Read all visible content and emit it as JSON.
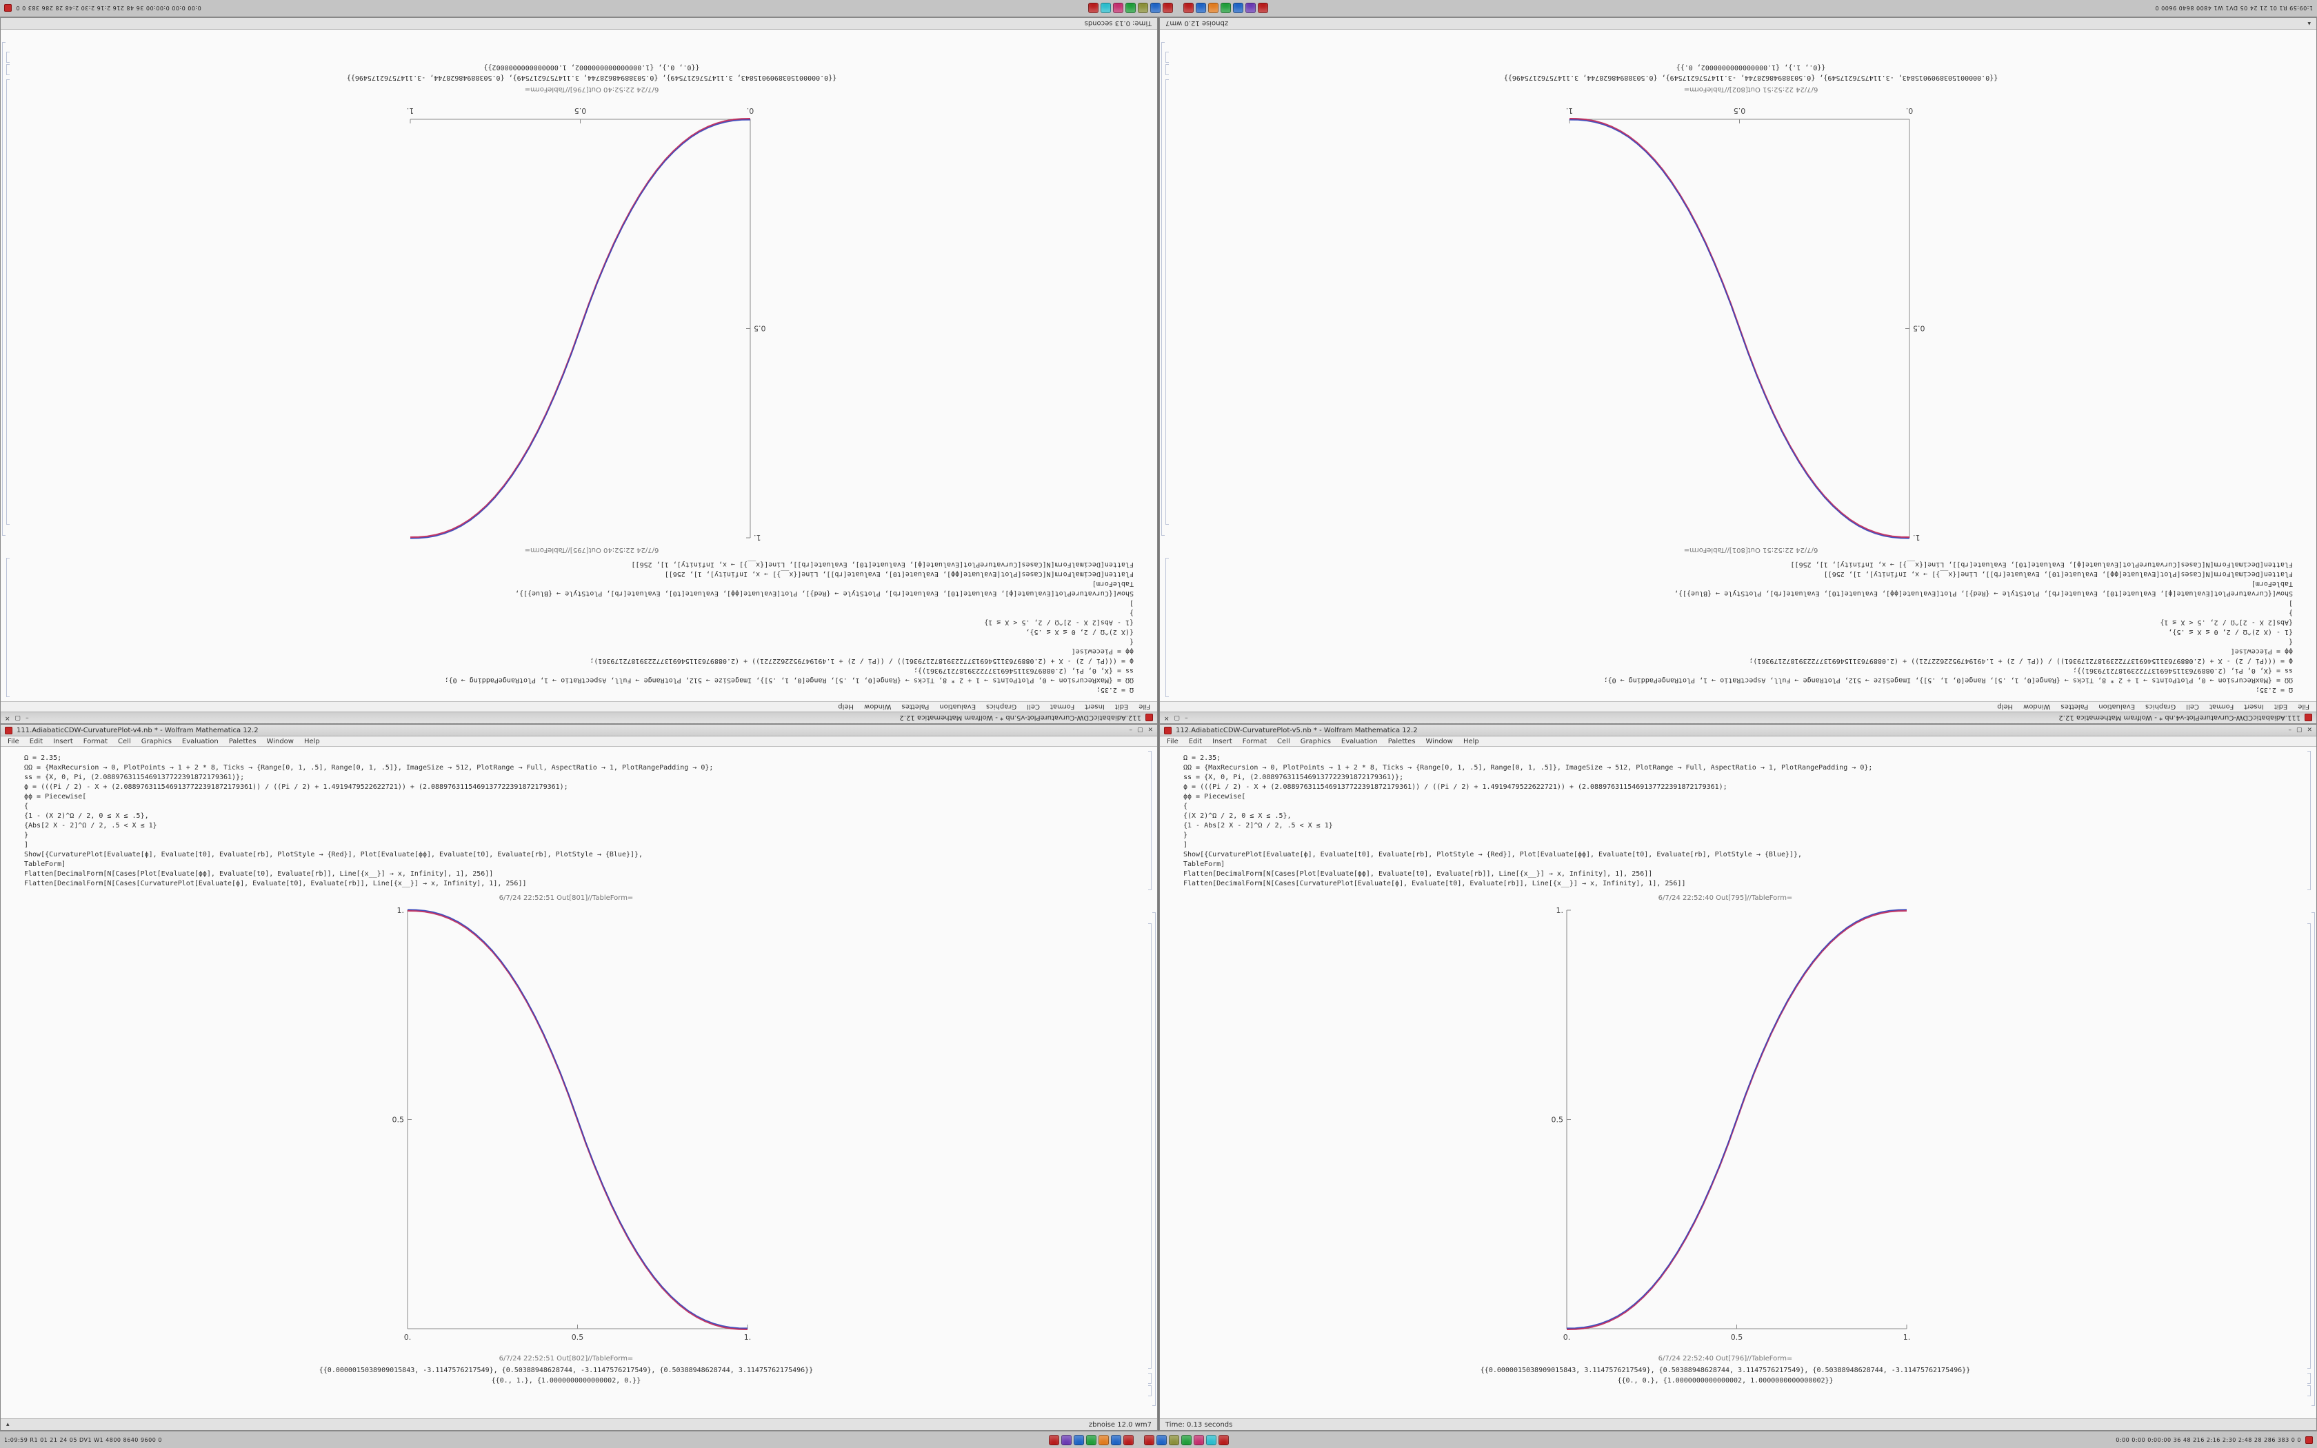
{
  "desktop": {
    "taskbar": {
      "left_text": "1:09:59  R1 01 21 24 05  DV1 W1  4800 8640 9600 0",
      "right_text": "0:00 0:00 0:00:00  36 48 216  2:16 2:30 2:48  28 286 383 0 0",
      "group1": [
        "#b71c1c",
        "#6a3ab2",
        "#1e63c4",
        "#1f9d3a",
        "#e07b1f",
        "#1e63c4",
        "#b71c1c"
      ],
      "group2": [
        "#b71c1c",
        "#1e63c4",
        "#8a8f3a",
        "#1f9d3a",
        "#c22f6e",
        "#2bbccc",
        "#b71c1c"
      ]
    }
  },
  "menu": [
    "File",
    "Edit",
    "Insert",
    "Format",
    "Cell",
    "Graphics",
    "Evaluation",
    "Palettes",
    "Window",
    "Help"
  ],
  "window_buttons": {
    "minimize": "–",
    "maximize": "▢",
    "close": "✕"
  },
  "notebooks": {
    "A": {
      "title": "112.AdiabaticCDW-CurvaturePlot-v5.nb * - Wolfram Mathematica 12.2",
      "status_left": "Time: 0.13 seconds",
      "status_right": "",
      "code": [
        "Ω = 2.35;",
        "ΩΩ = {MaxRecursion → 0, PlotPoints → 1 + 2 * 8, Ticks → {Range[0, 1, .5], Range[0, 1, .5]}, ImageSize → 512, PlotRange → Full, AspectRatio → 1, PlotRangePadding → 0};",
        "ss = {X, 0, Pi, (2.0889763115469137722391872179361)};",
        "ϕ = (((Pi / 2) - X + (2.0889763115469137722391872179361)) / ((Pi / 2) + 1.4919479522622721)) + (2.0889763115469137722391872179361);",
        "ϕϕ = Piecewise[",
        "    {",
        "      {(X 2)^Ω / 2, 0 ≤ X ≤ .5},",
        "      {1 - Abs[2 X - 2]^Ω / 2, .5 < X ≤ 1}",
        "    }",
        "  ]",
        "Show[{CurvaturePlot[Evaluate[ϕ], Evaluate[t0], Evaluate[rb], PlotStyle → {Red}], Plot[Evaluate[ϕϕ], Evaluate[t0], Evaluate[rb], PlotStyle → {Blue}]},",
        "  TableForm]",
        "Flatten[DecimalForm[N[Cases[Plot[Evaluate[ϕϕ], Evaluate[t0], Evaluate[rb]], Line[{x__}] → x, Infinity], 1], 256]]",
        "Flatten[DecimalForm[N[Cases[CurvaturePlot[Evaluate[ϕ], Evaluate[t0], Evaluate[rb]], Line[{x__}] → x, Infinity], 1], 256]]"
      ],
      "caption1": "6/7/24 22:52:40 Out[795]//TableForm=",
      "caption2": "6/7/24 22:52:40 Out[796]//TableForm=",
      "outputs": [
        "{{0.0000015038909015843, 3.1147576217549}, {0.50388948628744, 3.1147576217549}, {0.50388948628744, -3.11475762175496}}",
        "{{0., 0.}, {1.0000000000000002, 1.0000000000000002}}"
      ]
    },
    "B": {
      "title": "111.AdiabaticCDW-CurvaturePlot-v4.nb * - Wolfram Mathematica 12.2",
      "status_left": "",
      "status_right": "zbnoise 12.0 wm7",
      "code": [
        "Ω = 2.35;",
        "ΩΩ = {MaxRecursion → 0, PlotPoints → 1 + 2 * 8, Ticks → {Range[0, 1, .5], Range[0, 1, .5]}, ImageSize → 512, PlotRange → Full, AspectRatio → 1, PlotRangePadding → 0};",
        "ss = {X, 0, Pi, (2.0889763115469137722391872179361)};",
        "ϕ = (((Pi / 2) - X + (2.0889763115469137722391872179361)) / ((Pi / 2) + 1.4919479522622721)) + (2.0889763115469137722391872179361);",
        "ϕϕ = Piecewise[",
        "    {",
        "      {1 - (X 2)^Ω / 2, 0 ≤ X ≤ .5},",
        "      {Abs[2 X - 2]^Ω / 2, .5 < X ≤ 1}",
        "    }",
        "  ]",
        "Show[{CurvaturePlot[Evaluate[ϕ], Evaluate[t0], Evaluate[rb], PlotStyle → {Red}], Plot[Evaluate[ϕϕ], Evaluate[t0], Evaluate[rb], PlotStyle → {Blue}]},",
        "  TableForm]",
        "Flatten[DecimalForm[N[Cases[Plot[Evaluate[ϕϕ], Evaluate[t0], Evaluate[rb]], Line[{x__}] → x, Infinity], 1], 256]]",
        "Flatten[DecimalForm[N[Cases[CurvaturePlot[Evaluate[ϕ], Evaluate[t0], Evaluate[rb]], Line[{x__}] → x, Infinity], 1], 256]]"
      ],
      "caption1": "6/7/24 22:52:51 Out[801]//TableForm=",
      "caption2": "6/7/24 22:52:51 Out[802]//TableForm=",
      "outputs": [
        "{{0.0000015038909015843, -3.1147576217549}, {0.50388948628744, -3.1147576217549}, {0.50388948628744, 3.11475762175496}}",
        "{{0., 1.}, {1.0000000000000002, 0.}}"
      ]
    }
  },
  "chart_data": [
    {
      "type": "line",
      "title": "",
      "xlabel": "",
      "ylabel": "",
      "xlim": [
        0,
        1
      ],
      "ylim": [
        0,
        1
      ],
      "grid": false,
      "legend": "none",
      "x_ticks": [
        0,
        0.5,
        1
      ],
      "x_tick_labels": [
        "0.",
        "0.5",
        "1."
      ],
      "y_ticks": [
        0.5,
        1
      ],
      "y_tick_labels": [
        "0.5",
        "1."
      ],
      "x_step": 0.025,
      "series": [
        {
          "name": "CurvaturePlot (Red)",
          "color": "#bb2255"
        },
        {
          "name": "Plot (Blue)",
          "color": "#3344bb"
        }
      ],
      "values": [
        0,
        0.0004,
        0.0022,
        0.0058,
        0.0114,
        0.0192,
        0.0295,
        0.0424,
        0.0581,
        0.0766,
        0.098,
        0.1227,
        0.1506,
        0.1817,
        0.2163,
        0.2543,
        0.2959,
        0.3413,
        0.3903,
        0.4432,
        0.5,
        0.5568,
        0.6097,
        0.6587,
        0.7041,
        0.7457,
        0.7837,
        0.8183,
        0.8494,
        0.8773,
        0.902,
        0.9234,
        0.9419,
        0.9576,
        0.9705,
        0.9808,
        0.9886,
        0.9942,
        0.9978,
        0.9996,
        1
      ]
    },
    {
      "type": "line",
      "title": "",
      "xlabel": "",
      "ylabel": "",
      "xlim": [
        0,
        1
      ],
      "ylim": [
        0,
        1
      ],
      "grid": false,
      "legend": "none",
      "x_ticks": [
        0,
        0.5,
        1
      ],
      "x_tick_labels": [
        "0.",
        "0.5",
        "1."
      ],
      "y_ticks": [
        0.5,
        1
      ],
      "y_tick_labels": [
        "0.5",
        "1."
      ],
      "x_step": 0.025,
      "series": [
        {
          "name": "CurvaturePlot (Red)",
          "color": "#bb2255"
        },
        {
          "name": "Plot (Blue)",
          "color": "#3344bb"
        }
      ],
      "values": [
        1,
        0.9996,
        0.9978,
        0.9942,
        0.9886,
        0.9808,
        0.9705,
        0.9576,
        0.9419,
        0.9234,
        0.902,
        0.8773,
        0.8494,
        0.8183,
        0.7837,
        0.7457,
        0.7041,
        0.6587,
        0.6097,
        0.5568,
        0.5,
        0.4432,
        0.3903,
        0.3413,
        0.2959,
        0.2543,
        0.2163,
        0.1817,
        0.1506,
        0.1227,
        0.098,
        0.0766,
        0.0581,
        0.0424,
        0.0295,
        0.0192,
        0.0114,
        0.0058,
        0.0022,
        0.0004,
        0
      ]
    }
  ]
}
